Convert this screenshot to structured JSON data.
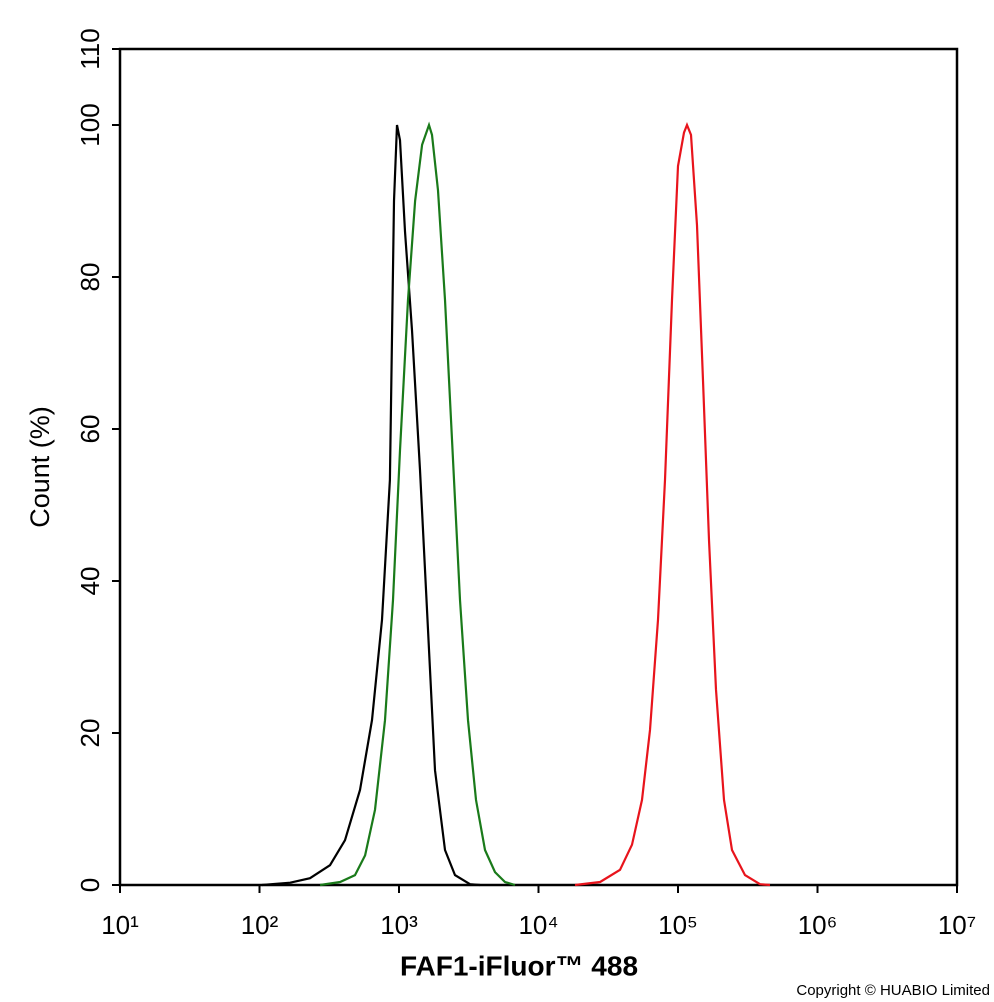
{
  "chart_data": {
    "type": "line",
    "xlabel": "FAF1-iFluor™ 488",
    "ylabel": "Count  (%)",
    "footnote": "Copyright © HUABIO Limited",
    "xscale": "log",
    "xlim": [
      10,
      10000000
    ],
    "xticks": [
      {
        "value": 10,
        "label": "10¹"
      },
      {
        "value": 100,
        "label": "10²"
      },
      {
        "value": 1000,
        "label": "10³"
      },
      {
        "value": 10000,
        "label": "10⁴"
      },
      {
        "value": 100000,
        "label": "10⁵"
      },
      {
        "value": 1000000,
        "label": "10⁶"
      },
      {
        "value": 10000000,
        "label": "10⁷"
      }
    ],
    "ylim": [
      0,
      110
    ],
    "yticks": [
      0,
      20,
      40,
      60,
      80,
      100,
      110
    ],
    "series": [
      {
        "color": "#000000",
        "x": [
          104,
          166,
          230,
          320,
          410,
          525,
          640,
          755,
          861,
          921,
          968,
          1016,
          1104,
          1240,
          1415,
          1615,
          1812,
          2137,
          2520,
          3226,
          3810
        ],
        "values": [
          0,
          0.3,
          0.9,
          2.6,
          5.9,
          12.5,
          21.7,
          34.9,
          53.3,
          90,
          100,
          98,
          86,
          73,
          54.6,
          33.6,
          15.1,
          4.6,
          1.3,
          0.1,
          0
        ]
      },
      {
        "color": "#1a7a1a",
        "x": [
          272,
          378,
          484,
          571,
          673,
          794,
          906,
          1016,
          1161,
          1304,
          1463,
          1641,
          1725,
          1905,
          2137,
          2399,
          2737,
          3124,
          3566,
          4134,
          4874,
          5750,
          6788
        ],
        "values": [
          0,
          0.4,
          1.3,
          3.9,
          9.9,
          21.7,
          37.5,
          57.2,
          77,
          90,
          97.4,
          100,
          98.7,
          91.4,
          77,
          58.6,
          37.5,
          21.7,
          11.2,
          4.6,
          1.7,
          0.4,
          0
        ]
      },
      {
        "color": "#e8141c",
        "x": [
          18280,
          27620,
          38400,
          46800,
          55200,
          63000,
          71900,
          80700,
          90600,
          100000,
          110400,
          116100,
          123900,
          136800,
          151100,
          166900,
          187300,
          213600,
          243800,
          302200,
          386800,
          456500
        ],
        "values": [
          0,
          0.4,
          2,
          5.3,
          11.2,
          20.4,
          34.9,
          53.3,
          77,
          94.6,
          99,
          100,
          98.7,
          86.8,
          66.4,
          45.4,
          25.7,
          11.2,
          4.6,
          1.3,
          0.1,
          0
        ]
      }
    ]
  }
}
